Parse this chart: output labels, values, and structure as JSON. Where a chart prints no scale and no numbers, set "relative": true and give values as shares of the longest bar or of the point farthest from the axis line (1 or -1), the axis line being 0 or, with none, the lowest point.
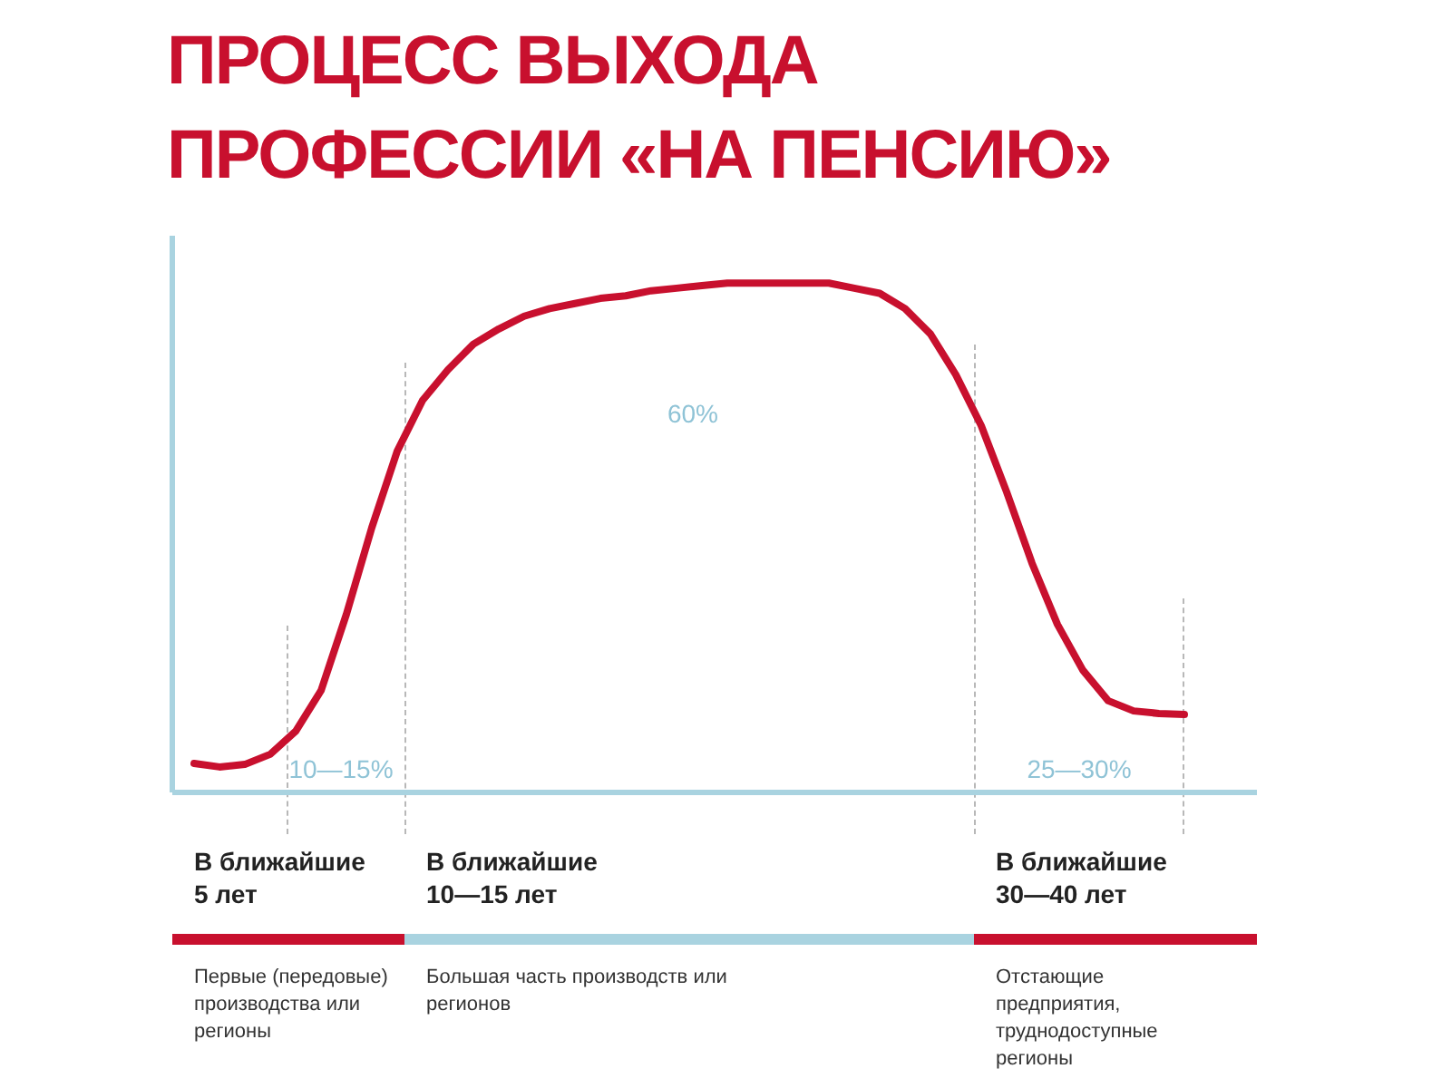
{
  "chart_data": {
    "type": "line",
    "title": "ПРОЦЕСС ВЫХОДА ПРОФЕССИИ «НА ПЕНСИЮ»",
    "relative": true,
    "categories": [
      null,
      null,
      null,
      null,
      null,
      null,
      null,
      null,
      null,
      null,
      null,
      null,
      null,
      null,
      null,
      null,
      null,
      null,
      null,
      null,
      null,
      null,
      null,
      null,
      null,
      null,
      null,
      null,
      null,
      null,
      null,
      null,
      null,
      null,
      null,
      null,
      null,
      null,
      null,
      null
    ],
    "values": [
      0.057,
      0.05,
      0.055,
      0.075,
      0.12,
      0.2,
      0.35,
      0.52,
      0.67,
      0.77,
      0.83,
      0.88,
      0.91,
      0.935,
      0.95,
      0.96,
      0.97,
      0.975,
      0.985,
      0.99,
      0.995,
      1,
      1,
      1,
      1,
      1,
      0.99,
      0.98,
      0.95,
      0.9,
      0.82,
      0.72,
      0.59,
      0.45,
      0.33,
      0.24,
      0.18,
      0.16,
      0.155,
      0.153
    ],
    "color": "#c8102e",
    "annotations": [
      "10—15%",
      "60%",
      "25—30%",
      "В ближайшие 5 лет",
      "В ближайшие 10—15 лет",
      "В ближайшие 30—40 лет",
      "Первые (передовые) производства или регионы",
      "Большая часть производств или регионов",
      "Отстающие предприятия, труднодоступные регионы"
    ]
  }
}
